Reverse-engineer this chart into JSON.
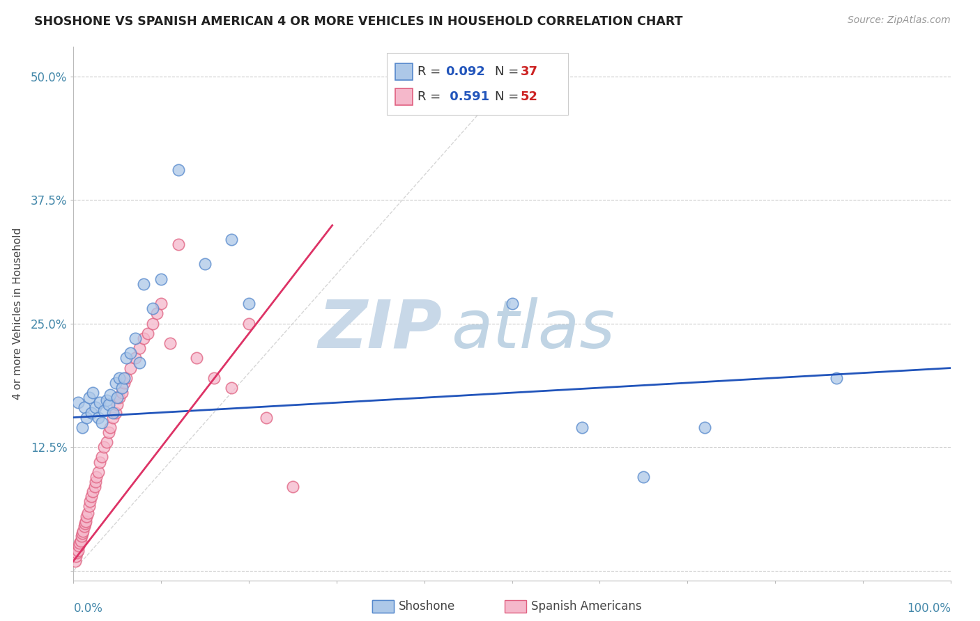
{
  "title": "SHOSHONE VS SPANISH AMERICAN 4 OR MORE VEHICLES IN HOUSEHOLD CORRELATION CHART",
  "source": "Source: ZipAtlas.com",
  "ylabel": "4 or more Vehicles in Household",
  "ytick_labels": [
    "",
    "12.5%",
    "25.0%",
    "37.5%",
    "50.0%"
  ],
  "ytick_vals": [
    0.0,
    0.125,
    0.25,
    0.375,
    0.5
  ],
  "legend_r1": "R = 0.092",
  "legend_n1": "N = 37",
  "legend_r2": "R =  0.591",
  "legend_n2": "N = 52",
  "shoshone_color": "#adc8e8",
  "spanish_color": "#f5b8cb",
  "shoshone_edge": "#5588cc",
  "spanish_edge": "#e06080",
  "trend_blue": "#2255bb",
  "trend_pink": "#dd3366",
  "ref_line_color": "#cccccc",
  "watermark_zip_color": "#c8d8e8",
  "watermark_atlas_color": "#c0d4e4",
  "shoshone_x": [
    0.005,
    0.01,
    0.012,
    0.015,
    0.018,
    0.02,
    0.022,
    0.025,
    0.028,
    0.03,
    0.032,
    0.035,
    0.038,
    0.04,
    0.042,
    0.045,
    0.048,
    0.05,
    0.052,
    0.055,
    0.058,
    0.06,
    0.065,
    0.07,
    0.075,
    0.08,
    0.09,
    0.1,
    0.12,
    0.15,
    0.18,
    0.2,
    0.5,
    0.58,
    0.65,
    0.72,
    0.87
  ],
  "shoshone_y": [
    0.17,
    0.145,
    0.165,
    0.155,
    0.175,
    0.16,
    0.18,
    0.165,
    0.155,
    0.17,
    0.15,
    0.162,
    0.172,
    0.168,
    0.178,
    0.16,
    0.19,
    0.175,
    0.195,
    0.185,
    0.195,
    0.215,
    0.22,
    0.235,
    0.21,
    0.29,
    0.265,
    0.295,
    0.405,
    0.31,
    0.335,
    0.27,
    0.27,
    0.145,
    0.095,
    0.145,
    0.195
  ],
  "spanish_x": [
    0.002,
    0.003,
    0.004,
    0.005,
    0.006,
    0.007,
    0.008,
    0.009,
    0.01,
    0.011,
    0.012,
    0.013,
    0.014,
    0.015,
    0.016,
    0.018,
    0.019,
    0.02,
    0.022,
    0.024,
    0.025,
    0.026,
    0.028,
    0.03,
    0.032,
    0.035,
    0.038,
    0.04,
    0.042,
    0.045,
    0.048,
    0.05,
    0.052,
    0.055,
    0.058,
    0.06,
    0.065,
    0.07,
    0.075,
    0.08,
    0.085,
    0.09,
    0.095,
    0.1,
    0.11,
    0.12,
    0.14,
    0.16,
    0.18,
    0.2,
    0.22,
    0.25
  ],
  "spanish_y": [
    0.01,
    0.015,
    0.018,
    0.02,
    0.025,
    0.028,
    0.03,
    0.035,
    0.038,
    0.04,
    0.045,
    0.048,
    0.05,
    0.055,
    0.058,
    0.065,
    0.07,
    0.075,
    0.08,
    0.085,
    0.09,
    0.095,
    0.1,
    0.11,
    0.115,
    0.125,
    0.13,
    0.14,
    0.145,
    0.155,
    0.16,
    0.168,
    0.175,
    0.18,
    0.19,
    0.195,
    0.205,
    0.215,
    0.225,
    0.235,
    0.24,
    0.25,
    0.26,
    0.27,
    0.23,
    0.33,
    0.215,
    0.195,
    0.185,
    0.25,
    0.155,
    0.085
  ],
  "xlim": [
    0.0,
    1.0
  ],
  "ylim": [
    -0.01,
    0.53
  ],
  "blue_trend_x": [
    0.0,
    1.0
  ],
  "blue_trend_y": [
    0.155,
    0.205
  ],
  "pink_trend_x_start": -0.005,
  "pink_trend_x_end": 0.295,
  "pink_trend_slope": 1.15,
  "pink_trend_intercept": 0.01
}
